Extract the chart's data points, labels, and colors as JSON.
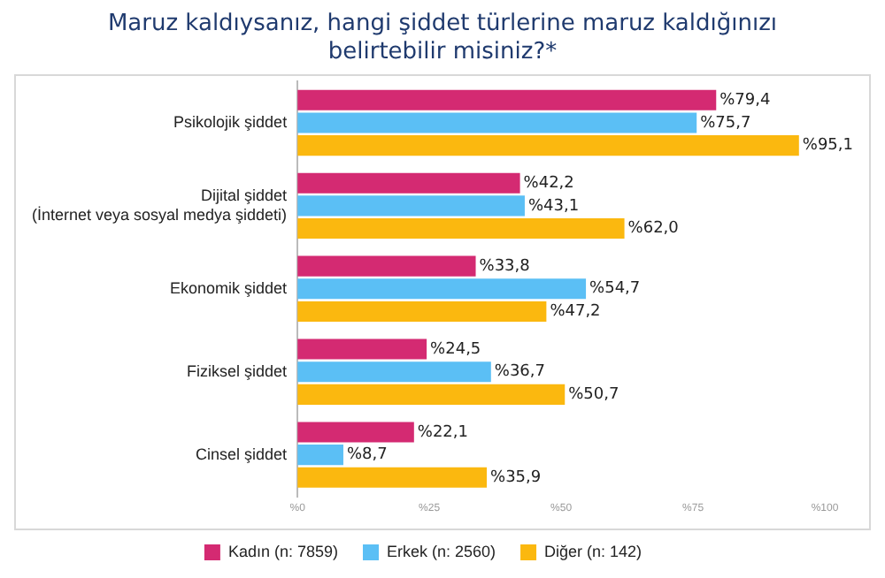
{
  "chart_data": {
    "type": "bar",
    "orientation": "horizontal",
    "title": "Maruz kaldıysanız, hangi şiddet türlerine maruz kaldığınızı belirtebilir misiniz?*",
    "categories": [
      "Psikolojik şiddet",
      "Dijital şiddet\n(İnternet veya sosyal medya şiddeti)",
      "Ekonomik şiddet",
      "Fiziksel şiddet",
      "Cinsel şiddet"
    ],
    "series": [
      {
        "name": "Kadın (n: 7859)",
        "color": "#d42a72",
        "values": [
          79.4,
          42.2,
          33.8,
          24.5,
          22.1
        ],
        "value_labels": [
          "%79,4",
          "%42,2",
          "%33,8",
          "%24,5",
          "%22,1"
        ]
      },
      {
        "name": "Erkek (n: 2560)",
        "color": "#5bbff5",
        "values": [
          75.7,
          43.1,
          54.7,
          36.7,
          8.7
        ],
        "value_labels": [
          "%75,7",
          "%43,1",
          "%54,7",
          "%36,7",
          "%8,7"
        ]
      },
      {
        "name": "Diğer (n: 142)",
        "color": "#fbb80f",
        "values": [
          95.1,
          62.0,
          47.2,
          50.7,
          35.9
        ],
        "value_labels": [
          "%95,1",
          "%62,0",
          "%47,2",
          "%50,7",
          "%35,9"
        ]
      }
    ],
    "xlim": [
      0,
      100
    ],
    "xticks": [
      {
        "value": 0,
        "label": "%0"
      },
      {
        "value": 25,
        "label": "%25"
      },
      {
        "value": 50,
        "label": "%50"
      },
      {
        "value": 75,
        "label": "%75"
      },
      {
        "value": 100,
        "label": "%100"
      }
    ],
    "grid": false,
    "legend": "bottom"
  }
}
